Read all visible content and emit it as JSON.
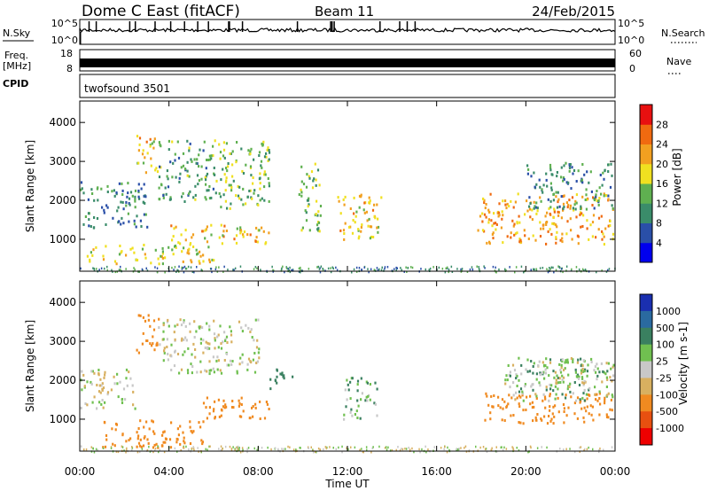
{
  "header": {
    "station": "Dome C East (fitACF)",
    "beam": "Beam 11",
    "date": "24/Feb/2015"
  },
  "top_strip": {
    "nsky_label": "N.Sky",
    "nsky_ticks": [
      "10^5",
      "10^0"
    ],
    "nsearch_label": "N.Search",
    "nsearch_ticks": [
      "10^5",
      "10^0"
    ],
    "freq_label": "Freq.",
    "freq_unit": "[MHz]",
    "freq_ticks": [
      "18",
      "8"
    ],
    "nave_label": "Nave",
    "nave_ticks": [
      "60",
      "0"
    ],
    "cpid_label": "CPID",
    "cpid_value": "twofsound 3501"
  },
  "colors": {
    "power_scale": [
      "#0000ee",
      "#2a4fa8",
      "#3a8c6a",
      "#5fb050",
      "#f0e020",
      "#f2a020",
      "#f06a10",
      "#e81010"
    ],
    "velocity_scale": [
      "#1a2fb0",
      "#2a6aa0",
      "#3a8060",
      "#70c050",
      "#c8c8c8",
      "#d8b060",
      "#f08a20",
      "#e85010",
      "#ee0000"
    ]
  },
  "chart_data": [
    {
      "type": "heatmap",
      "title": "",
      "xlabel": "Time UT",
      "ylabel": "Slant Range [km]",
      "x_tick_labels": [
        "00:00",
        "04:00",
        "08:00",
        "12:00",
        "16:00",
        "20:00",
        "00:00"
      ],
      "x_range_hours": [
        0,
        24
      ],
      "y_tick_labels": [
        "1000",
        "2000",
        "3000",
        "4000"
      ],
      "ylim": [
        180,
        4550
      ],
      "colorbar_label": "Power [dB]",
      "colorbar_ticks": [
        "28",
        "24",
        "20",
        "16",
        "12",
        "8",
        "4"
      ],
      "crange": [
        0,
        32
      ],
      "regions": [
        {
          "t0": 0.0,
          "t1": 3.0,
          "r0": 1300,
          "r1": 2500,
          "level": 10
        },
        {
          "t0": 2.5,
          "t1": 3.5,
          "r0": 2700,
          "r1": 3700,
          "level": 20
        },
        {
          "t0": 3.5,
          "t1": 6.0,
          "r0": 2000,
          "r1": 3600,
          "level": 12
        },
        {
          "t0": 4.0,
          "t1": 8.5,
          "r0": 900,
          "r1": 1400,
          "level": 20
        },
        {
          "t0": 0.3,
          "t1": 6.0,
          "r0": 400,
          "r1": 900,
          "level": 18
        },
        {
          "t0": 6.0,
          "t1": 8.5,
          "r0": 1800,
          "r1": 3600,
          "level": 14
        },
        {
          "t0": 9.8,
          "t1": 10.8,
          "r0": 1200,
          "r1": 3000,
          "level": 14
        },
        {
          "t0": 11.5,
          "t1": 13.5,
          "r0": 1000,
          "r1": 2200,
          "level": 20
        },
        {
          "t0": 17.8,
          "t1": 23.9,
          "r0": 900,
          "r1": 2200,
          "level": 22
        },
        {
          "t0": 20.0,
          "t1": 23.9,
          "r0": 1800,
          "r1": 3000,
          "level": 10
        }
      ]
    },
    {
      "type": "heatmap",
      "title": "",
      "xlabel": "Time UT",
      "ylabel": "Slant Range [km]",
      "x_tick_labels": [
        "00:00",
        "04:00",
        "08:00",
        "12:00",
        "16:00",
        "20:00",
        "00:00"
      ],
      "x_range_hours": [
        0,
        24
      ],
      "y_tick_labels": [
        "1000",
        "2000",
        "3000",
        "4000"
      ],
      "ylim": [
        180,
        4550
      ],
      "colorbar_label": "Velocity [m s-1]",
      "colorbar_ticks": [
        "1000",
        "500",
        "100",
        "25",
        "-25",
        "-100",
        "-500",
        "-1000"
      ],
      "regions": [
        {
          "t0": 0.0,
          "t1": 2.5,
          "r0": 1300,
          "r1": 2300,
          "level": 0
        },
        {
          "t0": 2.5,
          "t1": 3.5,
          "r0": 2700,
          "r1": 3700,
          "level": -300
        },
        {
          "t0": 3.5,
          "t1": 8.0,
          "r0": 2200,
          "r1": 3600,
          "level": 0
        },
        {
          "t0": 1.0,
          "t1": 5.5,
          "r0": 300,
          "r1": 1000,
          "level": -300
        },
        {
          "t0": 5.5,
          "t1": 8.5,
          "r0": 1000,
          "r1": 1600,
          "level": -300
        },
        {
          "t0": 8.5,
          "t1": 9.5,
          "r0": 1800,
          "r1": 2400,
          "level": 300
        },
        {
          "t0": 11.8,
          "t1": 13.3,
          "r0": 1000,
          "r1": 2100,
          "level": 80
        },
        {
          "t0": 18.0,
          "t1": 23.9,
          "r0": 900,
          "r1": 1700,
          "level": -300
        },
        {
          "t0": 19.0,
          "t1": 23.9,
          "r0": 1500,
          "r1": 2600,
          "level": 60
        },
        {
          "t0": 20.5,
          "t1": 23.9,
          "r0": 1800,
          "r1": 2600,
          "level": 0
        }
      ]
    }
  ]
}
